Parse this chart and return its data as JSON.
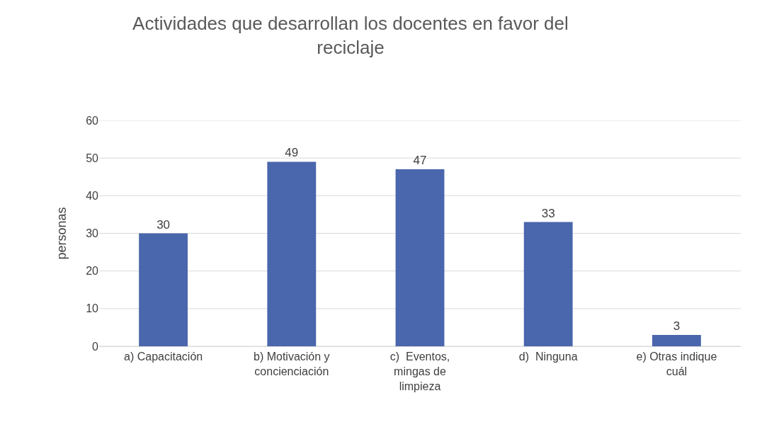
{
  "chart_data": {
    "type": "bar",
    "title": "Actividades que desarrollan los docentes en favor del reciclaje",
    "ylabel": "personas",
    "categories": [
      "a) Capacitación",
      "b) Motivación y concienciación",
      "c)  Eventos, mingas de limpieza",
      "d)  Ninguna",
      "e) Otras indique cuál"
    ],
    "values": [
      30,
      49,
      47,
      33,
      3
    ],
    "color": "#4a66ac",
    "ylim": [
      0,
      60
    ],
    "yticks": [
      0,
      10,
      20,
      30,
      40,
      50,
      60
    ],
    "grid": "y",
    "data_labels": true
  }
}
